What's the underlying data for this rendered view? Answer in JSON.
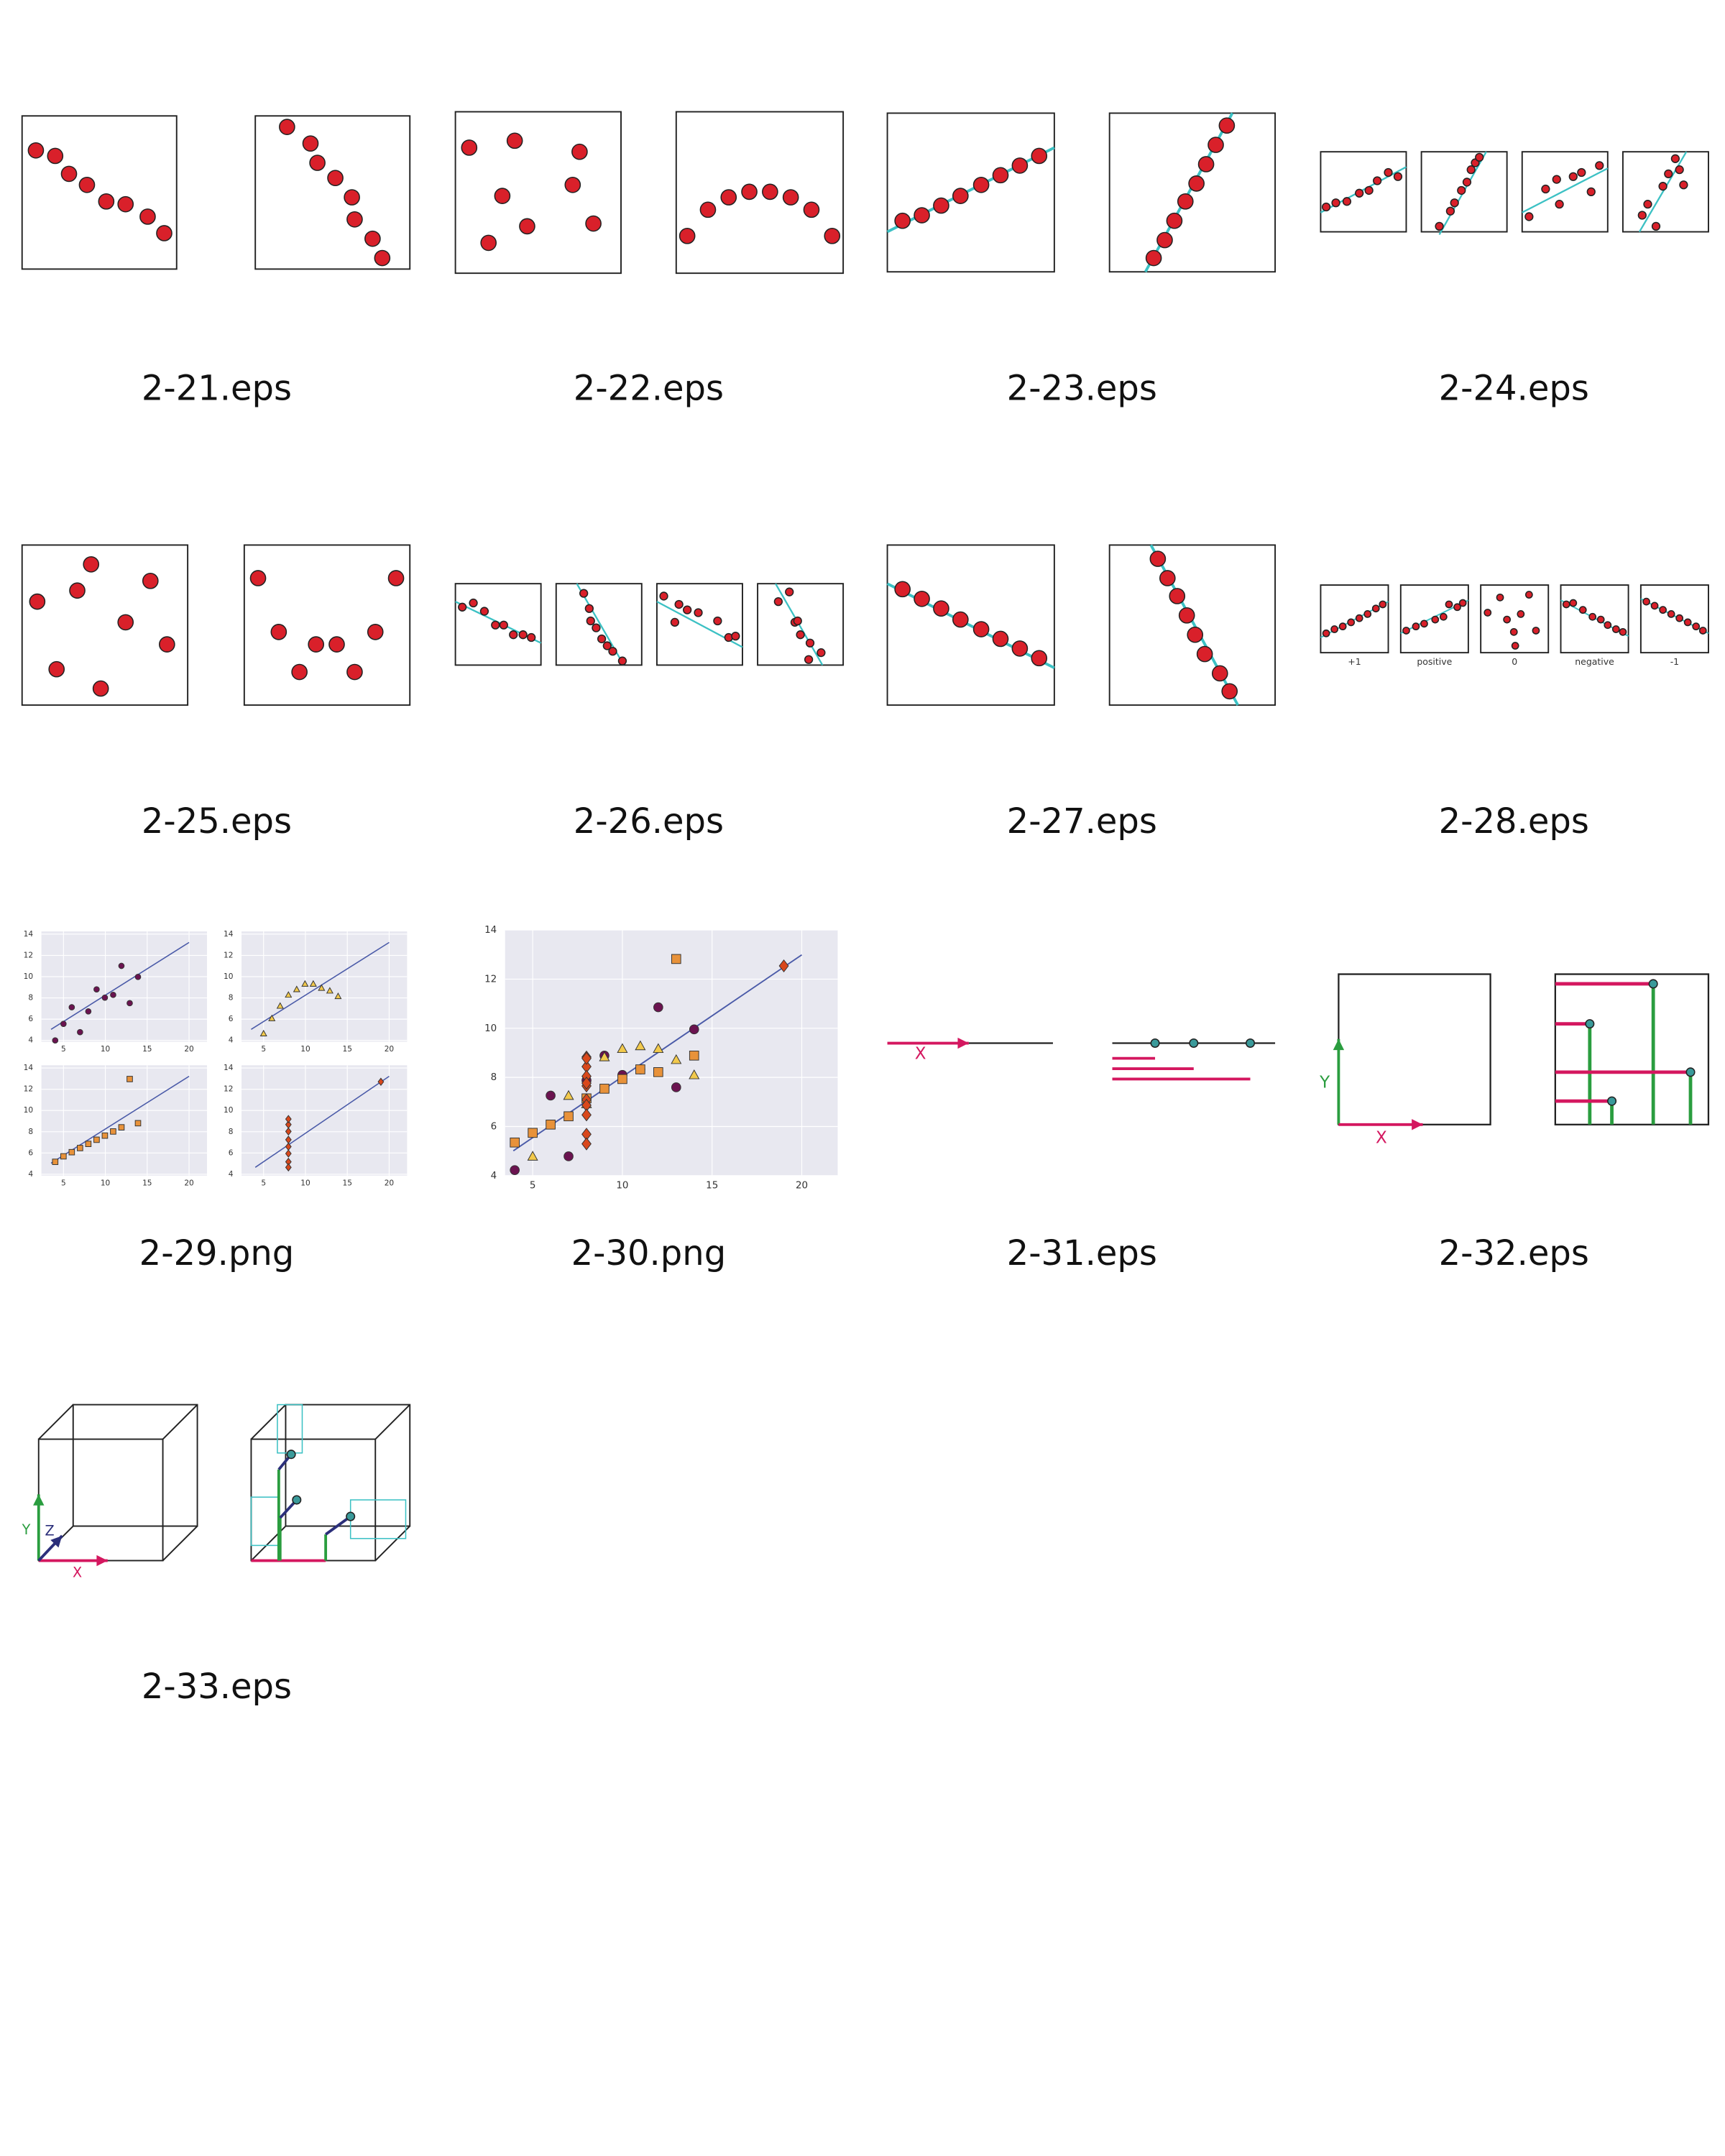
{
  "files": [
    {
      "name": "2-21.eps"
    },
    {
      "name": "2-22.eps"
    },
    {
      "name": "2-23.eps"
    },
    {
      "name": "2-24.eps"
    },
    {
      "name": "2-25.eps"
    },
    {
      "name": "2-26.eps"
    },
    {
      "name": "2-27.eps"
    },
    {
      "name": "2-28.eps",
      "labels": [
        "+1",
        "positive",
        "0",
        "negative",
        "-1"
      ]
    },
    {
      "name": "2-29.png",
      "yticks": [
        14,
        12,
        10,
        8,
        6,
        4
      ],
      "xticks": [
        5,
        10,
        15,
        20
      ]
    },
    {
      "name": "2-30.png",
      "yticks": [
        14,
        12,
        10,
        8,
        6,
        4
      ],
      "xticks": [
        5,
        10,
        15,
        20
      ]
    },
    {
      "name": "2-31.eps",
      "labels": [
        "X"
      ]
    },
    {
      "name": "2-32.eps",
      "labels": [
        "Y",
        "X"
      ]
    },
    {
      "name": "2-33.eps",
      "labels": [
        "Y",
        "Z",
        "X"
      ]
    }
  ]
}
